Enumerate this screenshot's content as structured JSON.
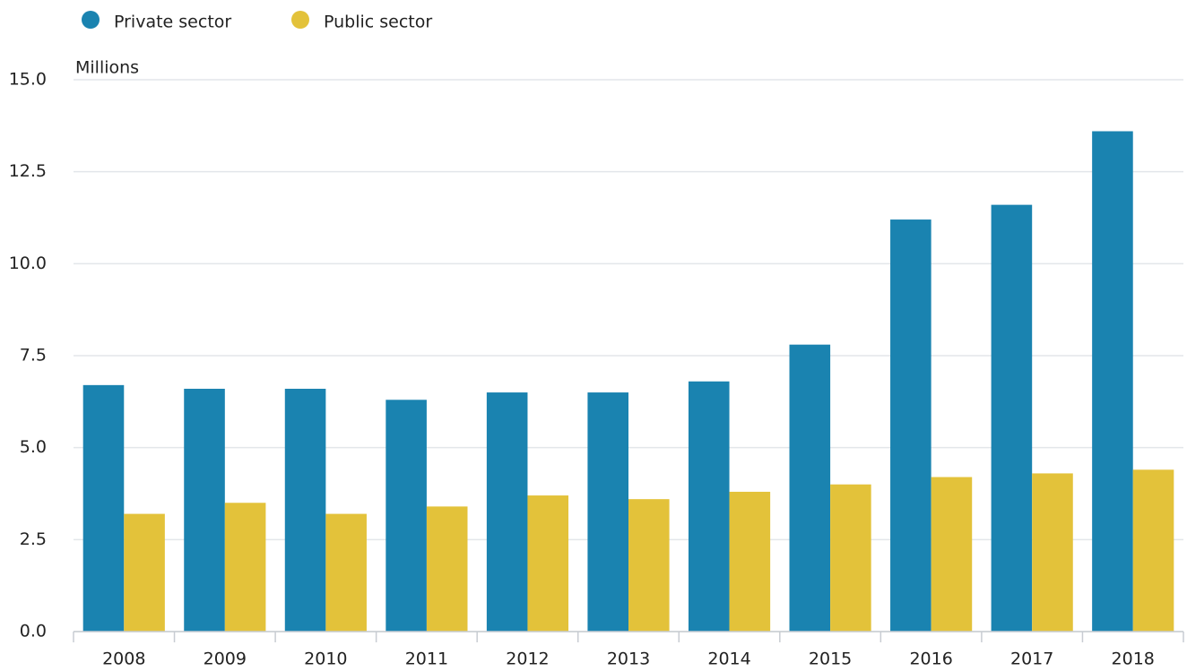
{
  "chart_data": {
    "type": "bar",
    "y_label": "Millions",
    "categories": [
      "2008",
      "2009",
      "2010",
      "2011",
      "2012",
      "2013",
      "2014",
      "2015",
      "2016",
      "2017",
      "2018"
    ],
    "series": [
      {
        "name": "Private sector",
        "color": "#1a83b0",
        "values": [
          6.7,
          6.6,
          6.6,
          6.3,
          6.5,
          6.5,
          6.8,
          7.8,
          11.2,
          11.6,
          13.6
        ]
      },
      {
        "name": "Public sector",
        "color": "#e3c23a",
        "values": [
          3.2,
          3.5,
          3.2,
          3.4,
          3.7,
          3.6,
          3.8,
          4.0,
          4.2,
          4.3,
          4.4
        ]
      }
    ],
    "ylim": [
      0,
      15
    ],
    "yticks": [
      {
        "value": 0,
        "label": "0.0"
      },
      2.5,
      {
        "value": 5,
        "label": "5.0"
      },
      7.5,
      {
        "value": 10,
        "label": "10.0"
      },
      12.5,
      {
        "value": 15,
        "label": "15.0"
      }
    ],
    "grid": true
  }
}
